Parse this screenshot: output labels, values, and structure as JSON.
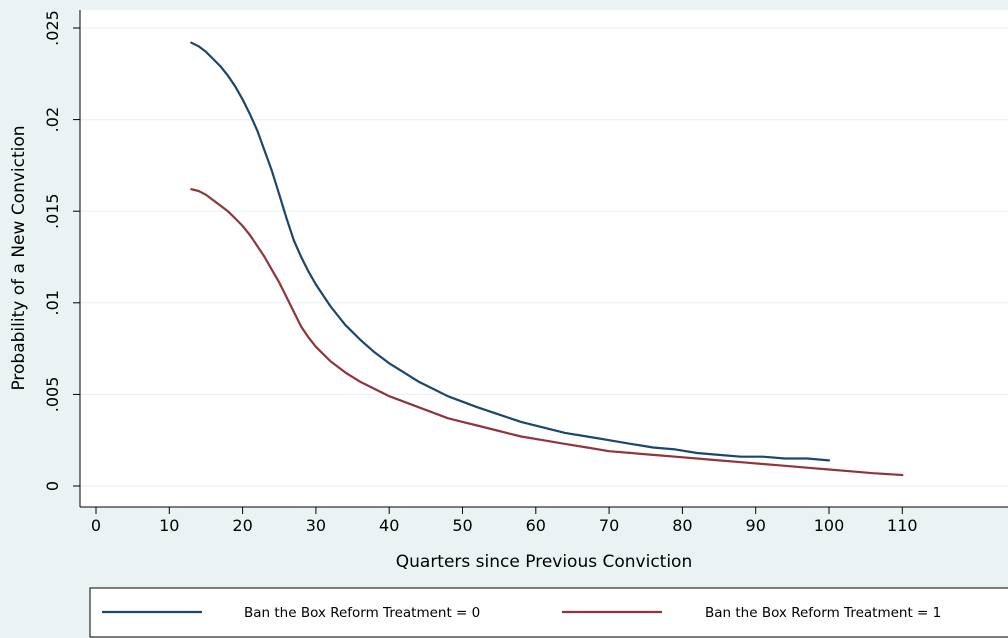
{
  "chart_data": {
    "type": "line",
    "title": "",
    "xlabel": "Quarters since Previous Conviction",
    "ylabel": "Probability of a New Conviction",
    "xlim": [
      -2,
      125
    ],
    "ylim": [
      -0.0012,
      0.0255
    ],
    "x_ticks": [
      0,
      10,
      20,
      30,
      40,
      50,
      60,
      70,
      80,
      90,
      100,
      110
    ],
    "x_tick_labels": [
      "0",
      "10",
      "20",
      "30",
      "40",
      "50",
      "60",
      "70",
      "80",
      "90",
      "100",
      "110"
    ],
    "y_ticks": [
      0,
      0.005,
      0.01,
      0.015,
      0.02,
      0.025
    ],
    "y_tick_labels": [
      "0",
      ".005",
      ".01",
      ".015",
      ".02",
      ".025"
    ],
    "grid": true,
    "legend_position": "bottom",
    "series": [
      {
        "name": "Ban the Box Reform Treatment = 0",
        "color": "#1a476f",
        "x": [
          13,
          14,
          15,
          16,
          17,
          18,
          19,
          20,
          21,
          22,
          23,
          24,
          25,
          26,
          27,
          28,
          29,
          30,
          32,
          34,
          36,
          38,
          40,
          42,
          44,
          46,
          48,
          50,
          52,
          55,
          58,
          61,
          64,
          67,
          70,
          73,
          76,
          79,
          82,
          85,
          88,
          91,
          94,
          97,
          100
        ],
        "y": [
          0.0242,
          0.024,
          0.0237,
          0.0233,
          0.0229,
          0.0224,
          0.0218,
          0.0211,
          0.0203,
          0.0194,
          0.0183,
          0.0172,
          0.0159,
          0.0146,
          0.0134,
          0.0125,
          0.0117,
          0.011,
          0.0098,
          0.0088,
          0.008,
          0.0073,
          0.0067,
          0.0062,
          0.0057,
          0.0053,
          0.0049,
          0.0046,
          0.0043,
          0.0039,
          0.0035,
          0.0032,
          0.0029,
          0.0027,
          0.0025,
          0.0023,
          0.0021,
          0.002,
          0.0018,
          0.0017,
          0.0016,
          0.0016,
          0.0015,
          0.0015,
          0.0014
        ]
      },
      {
        "name": "Ban the Box Reform Treatment = 1",
        "color": "#90353b",
        "x": [
          13,
          14,
          15,
          16,
          17,
          18,
          19,
          20,
          21,
          22,
          23,
          24,
          25,
          26,
          27,
          28,
          29,
          30,
          32,
          34,
          36,
          38,
          40,
          42,
          44,
          46,
          48,
          50,
          52,
          55,
          58,
          61,
          64,
          67,
          70,
          73,
          76,
          79,
          82,
          85,
          88,
          91,
          94,
          97,
          100,
          103,
          106,
          110
        ],
        "y": [
          0.0162,
          0.0161,
          0.0159,
          0.0156,
          0.0153,
          0.015,
          0.0146,
          0.0142,
          0.0137,
          0.0131,
          0.0125,
          0.0118,
          0.0111,
          0.0103,
          0.0095,
          0.0087,
          0.0081,
          0.0076,
          0.0068,
          0.0062,
          0.0057,
          0.0053,
          0.0049,
          0.0046,
          0.0043,
          0.004,
          0.0037,
          0.0035,
          0.0033,
          0.003,
          0.0027,
          0.0025,
          0.0023,
          0.0021,
          0.0019,
          0.0018,
          0.0017,
          0.0016,
          0.0015,
          0.0014,
          0.0013,
          0.0012,
          0.0011,
          0.001,
          0.0009,
          0.0008,
          0.0007,
          0.0006
        ]
      }
    ]
  }
}
